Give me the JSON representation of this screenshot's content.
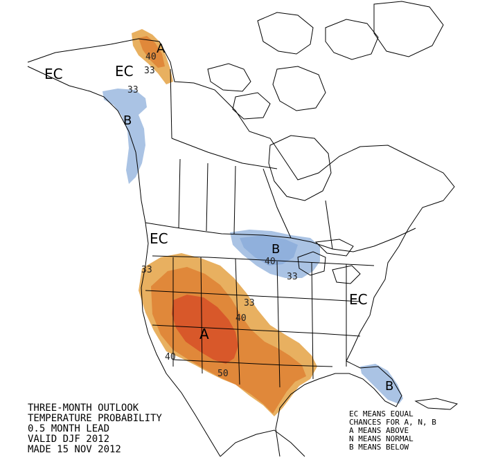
{
  "map": {
    "colors": {
      "above_33": "#e8b060",
      "above_40": "#e0883a",
      "above_50": "#d8582a",
      "below_33": "#aac3e4",
      "below_40": "#90b0dc",
      "ocean": "#ffffff",
      "land_line": "#000000"
    },
    "region_labels": [
      {
        "id": "ec-alaska-west",
        "text": "EC"
      },
      {
        "id": "ec-alaska-east",
        "text": "EC"
      },
      {
        "id": "ec-west",
        "text": "EC"
      },
      {
        "id": "ec-east",
        "text": "EC"
      },
      {
        "id": "a-alaska",
        "text": "A"
      },
      {
        "id": "a-southwest",
        "text": "A"
      },
      {
        "id": "b-panhandle",
        "text": "B"
      },
      {
        "id": "b-upper-midwest",
        "text": "B"
      },
      {
        "id": "b-florida",
        "text": "B"
      }
    ],
    "contour_labels": [
      {
        "id": "c-ak-40",
        "text": "40"
      },
      {
        "id": "c-ak-33",
        "text": "33"
      },
      {
        "id": "c-pan-33",
        "text": "33"
      },
      {
        "id": "c-sw-33a",
        "text": "33"
      },
      {
        "id": "c-sw-33b",
        "text": "33"
      },
      {
        "id": "c-sw-40a",
        "text": "40"
      },
      {
        "id": "c-sw-40b",
        "text": "40"
      },
      {
        "id": "c-sw-50",
        "text": "50"
      },
      {
        "id": "c-mw-40",
        "text": "40"
      },
      {
        "id": "c-mw-33",
        "text": "33"
      }
    ]
  },
  "title_block": [
    "THREE-MONTH OUTLOOK",
    "TEMPERATURE PROBABILITY",
    "0.5 MONTH LEAD",
    "VALID DJF 2012",
    "MADE 15 NOV 2012"
  ],
  "legend": [
    "EC MEANS EQUAL",
    "CHANCES FOR A, N, B",
    "A MEANS ABOVE",
    "N MEANS NORMAL",
    "B MEANS BELOW"
  ]
}
